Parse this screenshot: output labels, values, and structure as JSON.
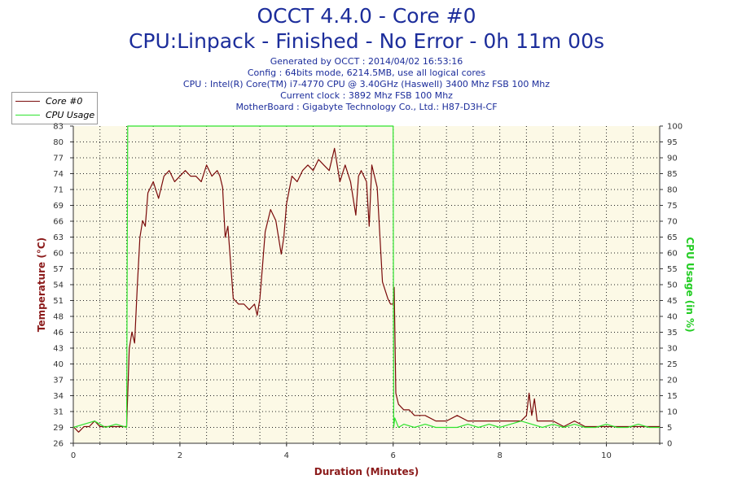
{
  "header": {
    "title": "OCCT 4.4.0 - Core #0",
    "subtitle": "CPU:Linpack - Finished - No Error - 0h 11m 00s",
    "info": [
      "Generated by OCCT : 2014/04/02 16:53:16",
      "Config : 64bits mode, 6214.5MB, use all logical cores",
      "CPU : Intel(R) Core(TM) i7-4770 CPU @ 3.40GHz (Haswell) 3400 Mhz FSB 100 Mhz",
      "Current clock : 3892 Mhz FSB 100 Mhz",
      "MotherBoard : Gigabyte Technology Co., Ltd.: H87-D3H-CF"
    ]
  },
  "chart_data": {
    "type": "line",
    "xlabel": "Duration (Minutes)",
    "ylabel": "Temperature (°C)",
    "y2label": "CPU Usage (in %)",
    "xlim": [
      0,
      11
    ],
    "ylim": [
      26,
      83
    ],
    "y2lim": [
      0,
      100
    ],
    "x_ticks": [
      "0",
      "2",
      "4",
      "6",
      "8",
      "10"
    ],
    "y_ticks": [
      "26",
      "29",
      "31",
      "34",
      "37",
      "40",
      "43",
      "46",
      "48",
      "51",
      "54",
      "57",
      "60",
      "63",
      "66",
      "69",
      "71",
      "74",
      "77",
      "80",
      "83"
    ],
    "y2_ticks": [
      "0",
      "5",
      "10",
      "15",
      "20",
      "25",
      "30",
      "35",
      "40",
      "45",
      "50",
      "55",
      "60",
      "65",
      "70",
      "75",
      "80",
      "85",
      "90",
      "95",
      "100"
    ],
    "grid": true,
    "legend_position": "top-left",
    "colors": {
      "temperature": "#7a0a0a",
      "usage": "#2ee32e",
      "axis_label_temp": "#8b1a1a",
      "axis_label_usage": "#22cc22",
      "plot_bg": "#fcf9e6"
    },
    "series": [
      {
        "name": "Core #0",
        "axis": "left",
        "x": [
          0.0,
          0.1,
          0.2,
          0.3,
          0.4,
          0.5,
          0.6,
          0.7,
          0.8,
          0.9,
          1.0,
          1.05,
          1.1,
          1.15,
          1.2,
          1.25,
          1.3,
          1.35,
          1.4,
          1.45,
          1.5,
          1.6,
          1.7,
          1.8,
          1.9,
          2.0,
          2.1,
          2.2,
          2.3,
          2.4,
          2.5,
          2.6,
          2.7,
          2.75,
          2.8,
          2.85,
          2.9,
          3.0,
          3.1,
          3.2,
          3.3,
          3.4,
          3.45,
          3.5,
          3.55,
          3.6,
          3.7,
          3.8,
          3.9,
          3.95,
          4.0,
          4.1,
          4.2,
          4.3,
          4.4,
          4.5,
          4.6,
          4.7,
          4.8,
          4.9,
          5.0,
          5.1,
          5.2,
          5.3,
          5.35,
          5.4,
          5.5,
          5.55,
          5.6,
          5.7,
          5.8,
          5.9,
          5.95,
          6.0,
          6.02,
          6.05,
          6.1,
          6.2,
          6.3,
          6.4,
          6.5,
          6.6,
          6.8,
          7.0,
          7.2,
          7.4,
          7.6,
          7.8,
          8.0,
          8.2,
          8.4,
          8.5,
          8.55,
          8.6,
          8.65,
          8.7,
          8.8,
          9.0,
          9.2,
          9.4,
          9.6,
          9.8,
          10.0,
          10.2,
          10.4,
          10.6,
          10.8,
          11.0
        ],
        "values": [
          29,
          28,
          29,
          29,
          30,
          29,
          29,
          29,
          29,
          29,
          29,
          43,
          46,
          44,
          54,
          63,
          66,
          65,
          71,
          72,
          73,
          70,
          74,
          75,
          73,
          74,
          75,
          74,
          74,
          73,
          76,
          74,
          75,
          74,
          72,
          63,
          65,
          52,
          51,
          51,
          50,
          51,
          49,
          52,
          58,
          64,
          68,
          66,
          60,
          63,
          69,
          74,
          73,
          75,
          76,
          75,
          77,
          76,
          75,
          79,
          73,
          76,
          73,
          67,
          74,
          75,
          73,
          65,
          76,
          72,
          55,
          52,
          51,
          51,
          54,
          35,
          33,
          32,
          32,
          31,
          31,
          31,
          30,
          30,
          31,
          30,
          30,
          30,
          30,
          30,
          30,
          31,
          35,
          31,
          34,
          30,
          30,
          30,
          29,
          30,
          29,
          29,
          29,
          29,
          29,
          29,
          29,
          29
        ]
      },
      {
        "name": "CPU Usage",
        "axis": "right",
        "x": [
          0.0,
          0.2,
          0.4,
          0.6,
          0.8,
          1.0,
          1.01,
          1.02,
          5.99,
          6.0,
          6.01,
          6.03,
          6.1,
          6.2,
          6.4,
          6.6,
          6.8,
          7.0,
          7.2,
          7.4,
          7.6,
          7.8,
          8.0,
          8.2,
          8.4,
          8.6,
          8.8,
          9.0,
          9.2,
          9.4,
          9.6,
          9.8,
          10.0,
          10.2,
          10.4,
          10.6,
          10.8,
          11.0
        ],
        "values": [
          5,
          6,
          7,
          5,
          6,
          5,
          50,
          100,
          100,
          100,
          5,
          8,
          5,
          6,
          5,
          6,
          5,
          5,
          5,
          6,
          5,
          6,
          5,
          6,
          7,
          6,
          5,
          6,
          5,
          6,
          5,
          5,
          6,
          5,
          5,
          6,
          5,
          5
        ]
      }
    ]
  }
}
